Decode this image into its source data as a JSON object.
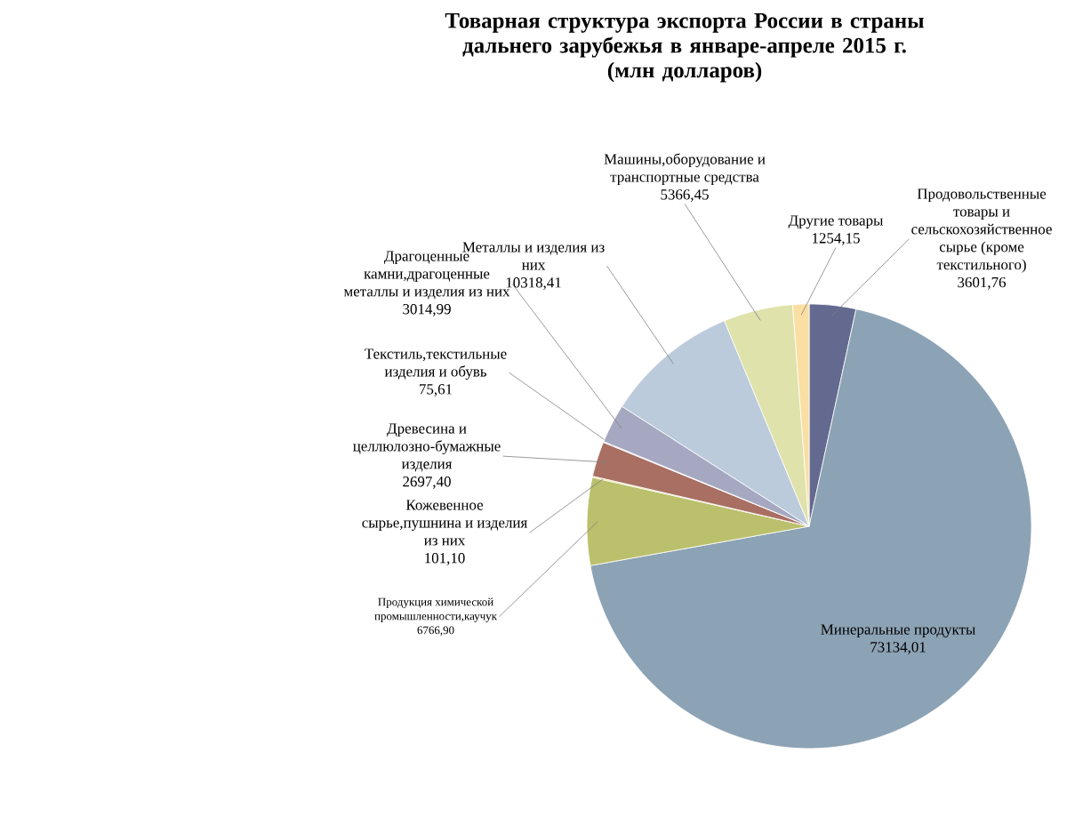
{
  "chart_data": {
    "type": "pie",
    "title": "Товарная структура экспорта России в страны дальнего зарубежья в январе-апреле 2015 г.",
    "subtitle": "(млн долларов)",
    "categories": [
      "Продовольственные товары и сельскохозяйственное сырье (кроме текстильного)",
      "Минеральные продукты",
      "Продукция химической промышленности,каучук",
      "Кожевенное сырье,пушнина и изделия из них",
      "Древесина и целлюлозно-бумажные изделия",
      "Текстиль,текстильные изделия и обувь",
      "Драгоценные камни,драгоценные металлы и изделия из них",
      "Металлы и изделия из них",
      "Машины,оборудование и транспортные средства",
      "Другие товары"
    ],
    "values": [
      3601.76,
      73134.01,
      6766.9,
      101.1,
      2697.4,
      75.61,
      3014.99,
      10318.41,
      5366.45,
      1254.15
    ],
    "value_labels": [
      "3601,76",
      "73134,01",
      "6766,90",
      "101,10",
      "2697,40",
      "75,61",
      "3014,99",
      "10318,41",
      "5366,45",
      "1254,15"
    ],
    "colors": [
      "#64698f",
      "#8ca2b5",
      "#bbc06c",
      "#e8d27a",
      "#a86f62",
      "#c8c8d8",
      "#a5a8c0",
      "#bccbdb",
      "#dfe2ab",
      "#fadfa3"
    ],
    "legend": false
  }
}
